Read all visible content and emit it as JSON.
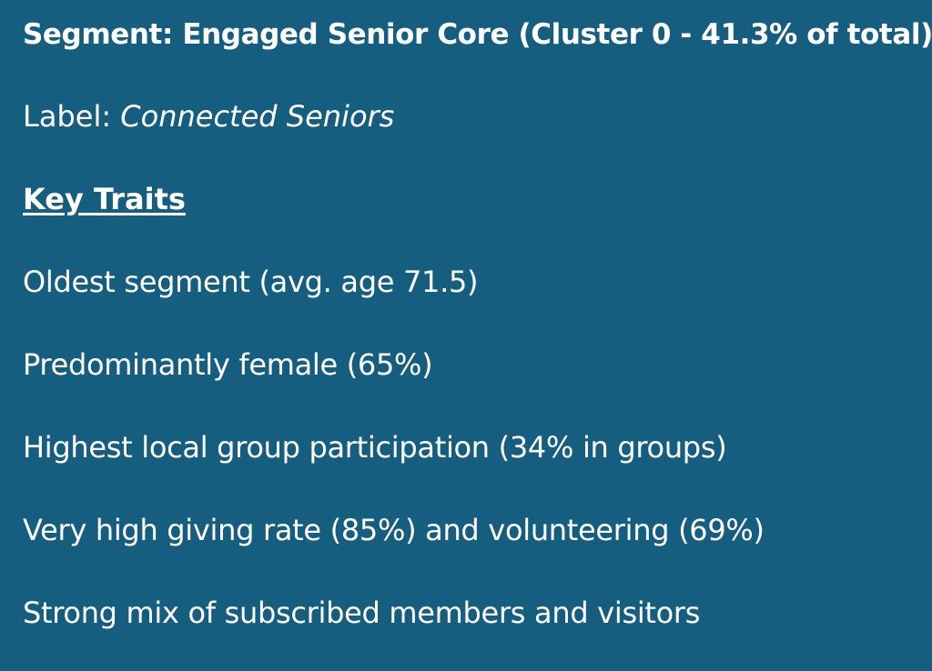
{
  "segment": {
    "title": "Segment: Engaged Senior Core (Cluster 0 - 41.3% of total)",
    "label_prefix": "Label: ",
    "label_value": "Connected Seniors",
    "traits_heading": "Key Traits",
    "traits": [
      "Oldest segment (avg. age 71.5)",
      "Predominantly female (65%)",
      "Highest local group participation (34% in groups)",
      "Very high giving rate (85%) and volunteering (69%)",
      "Strong mix of subscribed members and visitors"
    ],
    "colors": {
      "background": "#165e80",
      "text": "#ffffff"
    }
  }
}
